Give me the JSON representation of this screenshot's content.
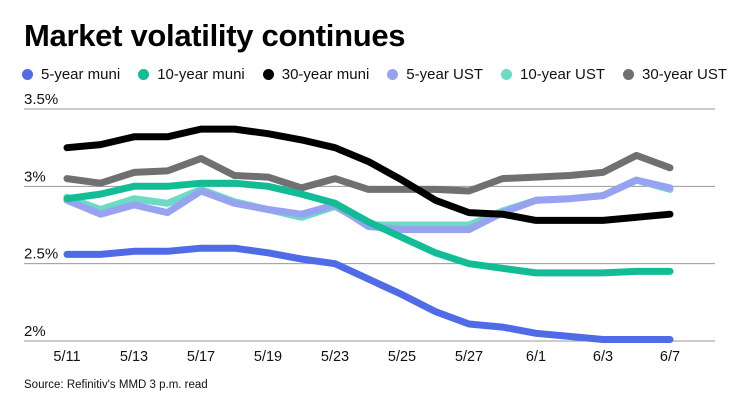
{
  "header": {
    "title": "Market volatility continues"
  },
  "legend": [
    {
      "label": "5-year muni",
      "color": "#4f6be8"
    },
    {
      "label": "10-year muni",
      "color": "#12bd96"
    },
    {
      "label": "30-year muni",
      "color": "#000000"
    },
    {
      "label": "5-year UST",
      "color": "#97a3f1"
    },
    {
      "label": "10-year UST",
      "color": "#6cdac4"
    },
    {
      "label": "30-year UST",
      "color": "#707073"
    }
  ],
  "footer": {
    "source": "Source: Refinitiv's MMD 3 p.m. read"
  },
  "chart_data": {
    "type": "line",
    "title": "Market volatility continues",
    "xlabel": "",
    "ylabel": "",
    "ylim": [
      2.0,
      3.5
    ],
    "yticks": [
      2.0,
      2.5,
      3.0,
      3.5
    ],
    "ytick_labels": [
      "2%",
      "2.5%",
      "3%",
      "3.5%"
    ],
    "grid": "horizontal",
    "legend_position": "top",
    "x": [
      "5/11",
      "5/12",
      "5/13",
      "5/16",
      "5/17",
      "5/18",
      "5/19",
      "5/20",
      "5/23",
      "5/24",
      "5/25",
      "5/26",
      "5/27",
      "5/31",
      "6/1",
      "6/2",
      "6/3",
      "6/6",
      "6/7"
    ],
    "xtick_labels": [
      "5/11",
      "5/13",
      "5/17",
      "5/19",
      "5/23",
      "5/25",
      "5/27",
      "6/1",
      "6/3",
      "6/7"
    ],
    "series": [
      {
        "name": "10-year UST",
        "color": "#6cdac4",
        "values": [
          2.93,
          2.85,
          2.92,
          2.89,
          2.98,
          2.9,
          2.85,
          2.8,
          2.87,
          2.75,
          2.75,
          2.75,
          2.75,
          2.84,
          2.91,
          2.92,
          2.94,
          3.04,
          2.98
        ]
      },
      {
        "name": "5-year UST",
        "color": "#97a3f1",
        "values": [
          2.91,
          2.82,
          2.88,
          2.83,
          2.97,
          2.89,
          2.85,
          2.82,
          2.88,
          2.74,
          2.72,
          2.72,
          2.72,
          2.83,
          2.91,
          2.92,
          2.94,
          3.04,
          2.99
        ]
      },
      {
        "name": "30-year UST",
        "color": "#707073",
        "values": [
          3.05,
          3.02,
          3.09,
          3.1,
          3.18,
          3.07,
          3.06,
          2.99,
          3.05,
          2.98,
          2.98,
          2.98,
          2.97,
          3.05,
          3.06,
          3.07,
          3.09,
          3.2,
          3.12
        ]
      },
      {
        "name": "10-year muni",
        "color": "#12bd96",
        "values": [
          2.92,
          2.95,
          3.0,
          3.0,
          3.02,
          3.02,
          3.0,
          2.95,
          2.89,
          2.77,
          2.67,
          2.57,
          2.5,
          2.47,
          2.44,
          2.44,
          2.44,
          2.45,
          2.45
        ]
      },
      {
        "name": "30-year muni",
        "color": "#000000",
        "values": [
          3.25,
          3.27,
          3.32,
          3.32,
          3.37,
          3.37,
          3.34,
          3.3,
          3.25,
          3.16,
          3.04,
          2.91,
          2.83,
          2.82,
          2.78,
          2.78,
          2.78,
          2.8,
          2.82
        ]
      },
      {
        "name": "5-year muni",
        "color": "#4f6be8",
        "values": [
          2.56,
          2.56,
          2.58,
          2.58,
          2.6,
          2.6,
          2.57,
          2.53,
          2.5,
          2.4,
          2.3,
          2.19,
          2.11,
          2.09,
          2.05,
          2.03,
          2.01,
          2.01,
          2.01
        ]
      }
    ]
  }
}
